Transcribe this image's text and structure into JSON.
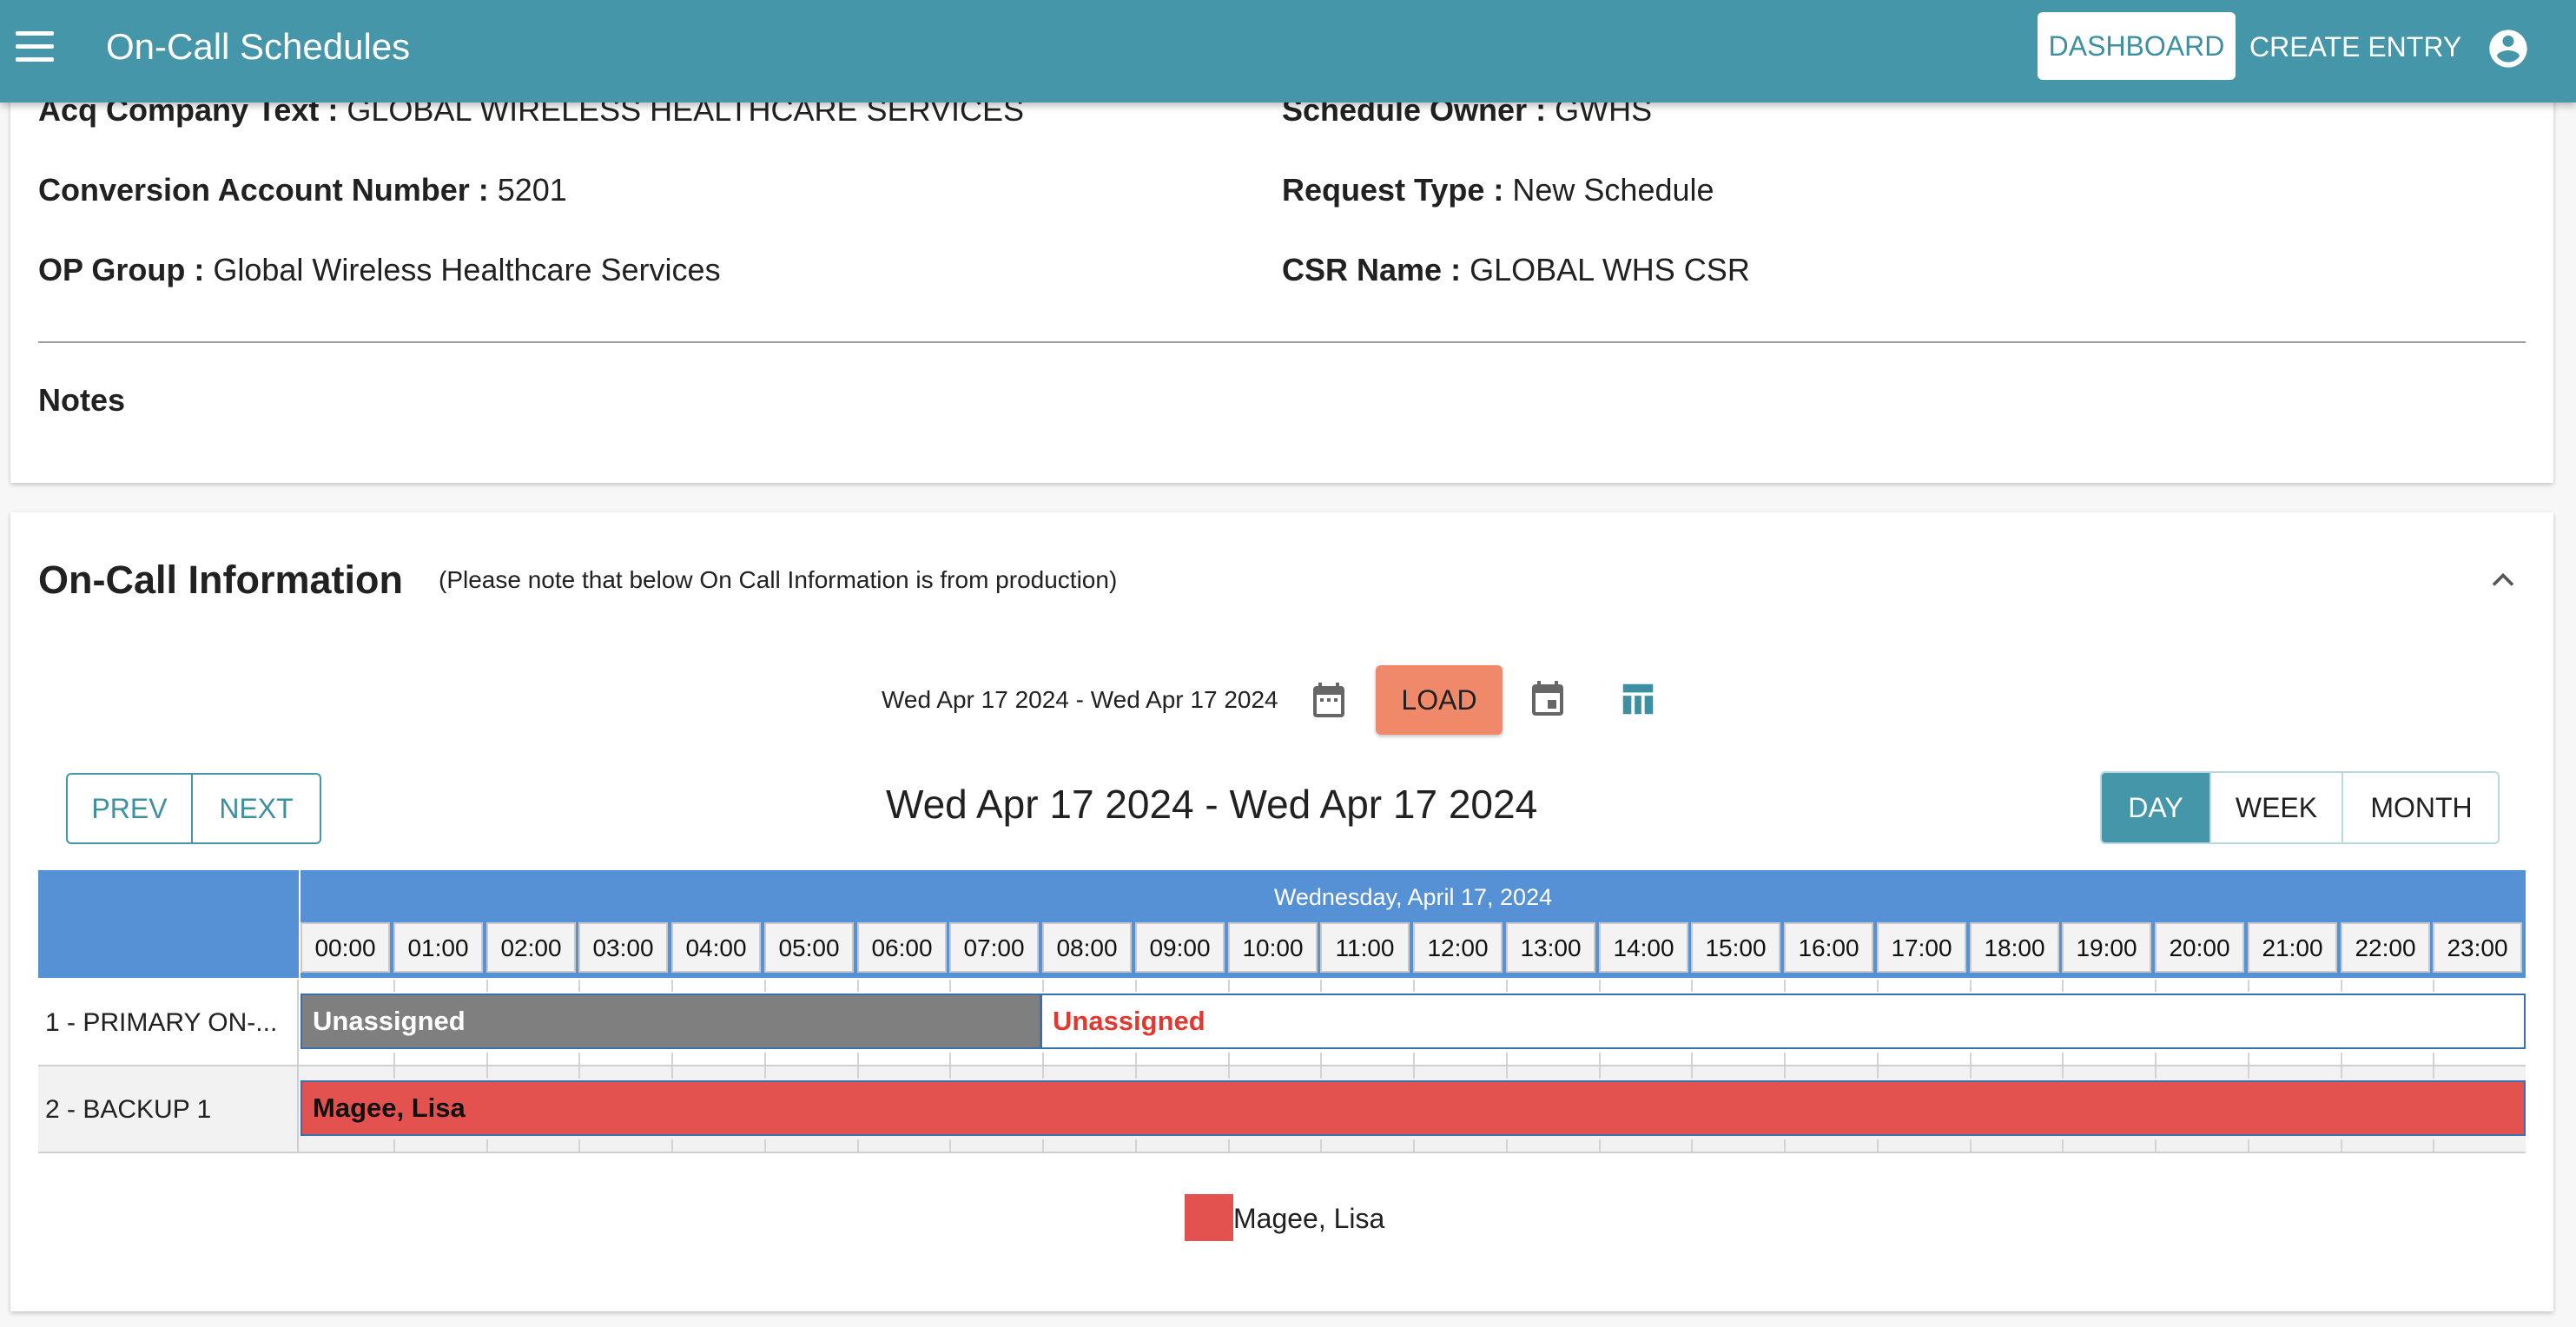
{
  "appbar": {
    "title": "On-Call Schedules",
    "dashboard_label": "DASHBOARD",
    "create_entry_label": "CREATE ENTRY",
    "color": "#4596a8"
  },
  "details": {
    "acq_company": {
      "label": "Acq Company Text :",
      "value": "GLOBAL WIRELESS HEALTHCARE SERVICES"
    },
    "schedule_owner": {
      "label": "Schedule Owner :",
      "value": "GWHS"
    },
    "conversion_account": {
      "label": "Conversion Account Number :",
      "value": "5201"
    },
    "request_type": {
      "label": "Request Type :",
      "value": "New Schedule"
    },
    "op_group": {
      "label": "OP Group :",
      "value": "Global Wireless Healthcare Services"
    },
    "csr_name": {
      "label": "CSR Name :",
      "value": "GLOBAL WHS CSR"
    },
    "notes_label": "Notes"
  },
  "oncall": {
    "title": "On-Call Information",
    "note": "(Please note that below On Call Information is from production)",
    "range_text": "Wed Apr 17 2024 - Wed Apr 17 2024",
    "load_label": "LOAD",
    "prev_label": "PREV",
    "next_label": "NEXT",
    "range_title": "Wed Apr 17 2024 - Wed Apr 17 2024",
    "views": {
      "day": "DAY",
      "week": "WEEK",
      "month": "MONTH",
      "active": "day"
    }
  },
  "timeline": {
    "date_header": "Wednesday, April 17, 2024",
    "hours": [
      "00:00",
      "01:00",
      "02:00",
      "03:00",
      "04:00",
      "05:00",
      "06:00",
      "07:00",
      "08:00",
      "09:00",
      "10:00",
      "11:00",
      "12:00",
      "13:00",
      "14:00",
      "15:00",
      "16:00",
      "17:00",
      "18:00",
      "19:00",
      "20:00",
      "21:00",
      "22:00",
      "23:00"
    ],
    "rows": [
      {
        "label": "1 - PRIMARY ON-..."
      },
      {
        "label": "2 - BACKUP 1"
      }
    ],
    "events": {
      "row1_a": "Unassigned",
      "row1_b": "Unassigned",
      "row2_a": "Magee, Lisa"
    },
    "header_color": "#5591d4"
  },
  "legend": {
    "name": "Magee, Lisa",
    "color": "#e3524e"
  }
}
